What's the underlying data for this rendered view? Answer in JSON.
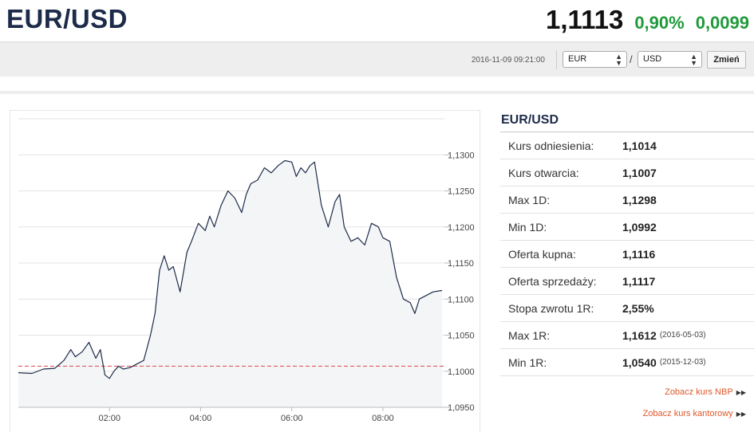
{
  "header": {
    "pair": "EUR/USD",
    "price": "1,1113",
    "change_pct": "0,90%",
    "change_abs": "0,0099"
  },
  "toolbar": {
    "timestamp": "2016-11-09 09:21:00",
    "from_currency": "EUR",
    "separator": "/",
    "to_currency": "USD",
    "change_button": "Zmień"
  },
  "panel": {
    "title": "EUR/USD",
    "rows": [
      {
        "label": "Kurs odniesienia:",
        "value": "1,1014",
        "date": ""
      },
      {
        "label": "Kurs otwarcia:",
        "value": "1,1007",
        "date": ""
      },
      {
        "label": "Max 1D:",
        "value": "1,1298",
        "date": ""
      },
      {
        "label": "Min 1D:",
        "value": "1,0992",
        "date": ""
      },
      {
        "label": "Oferta kupna:",
        "value": "1,1116",
        "date": ""
      },
      {
        "label": "Oferta sprzedaży:",
        "value": "1,1117",
        "date": ""
      },
      {
        "label": "Stopa zwrotu 1R:",
        "value": "2,55%",
        "date": ""
      },
      {
        "label": "Max 1R:",
        "value": "1,1612",
        "date": "(2016-05-03)"
      },
      {
        "label": "Min 1R:",
        "value": "1,0540",
        "date": "(2015-12-03)"
      }
    ],
    "link_nbp": "Zobacz kurs NBP",
    "link_kantor": "Zobacz kurs kantorowy",
    "chevron_icon": "double-chevron-right-icon"
  },
  "colors": {
    "title_navy": "#1d2b4a",
    "gain_green": "#1f9a3a",
    "link_orange": "#e0572a",
    "line": "#1d2b4a",
    "area": "#f4f5f7",
    "reference_line": "#e05a5a"
  },
  "chart_data": {
    "type": "area",
    "y_ticks": [
      "1,0950",
      "1,1000",
      "1,1050",
      "1,1100",
      "1,1150",
      "1,1200",
      "1,1250",
      "1,1300"
    ],
    "x_ticks": [
      "02:00",
      "04:00",
      "06:00",
      "08:00"
    ],
    "ylim": [
      1.095,
      1.135
    ],
    "xlim": [
      0.0,
      9.35
    ],
    "reference_line": 1.1007,
    "x_tick_values": [
      2,
      4,
      6,
      8
    ],
    "y_tick_values": [
      1.095,
      1.1,
      1.105,
      1.11,
      1.115,
      1.12,
      1.125,
      1.13
    ],
    "series": [
      {
        "x": [
          0.0,
          0.3,
          0.55,
          0.8,
          1.0,
          1.15,
          1.25,
          1.4,
          1.55,
          1.7,
          1.8,
          1.9,
          2.0,
          2.1,
          2.2,
          2.3,
          2.45,
          2.6,
          2.75,
          2.9,
          3.0,
          3.1,
          3.2,
          3.3,
          3.4,
          3.55,
          3.7,
          3.8,
          3.95,
          4.1,
          4.2,
          4.3,
          4.45,
          4.6,
          4.75,
          4.9,
          5.0,
          5.1,
          5.25,
          5.4,
          5.55,
          5.7,
          5.85,
          6.0,
          6.1,
          6.2,
          6.3,
          6.4,
          6.5,
          6.65,
          6.8,
          6.95,
          7.05,
          7.15,
          7.3,
          7.45,
          7.6,
          7.75,
          7.9,
          8.0,
          8.15,
          8.3,
          8.45,
          8.6,
          8.7,
          8.8,
          8.95,
          9.1,
          9.3
        ],
        "y": [
          1.0998,
          1.0997,
          1.1003,
          1.1004,
          1.1015,
          1.103,
          1.102,
          1.1027,
          1.104,
          1.1018,
          1.103,
          1.0995,
          1.099,
          1.1,
          1.1007,
          1.1003,
          1.1005,
          1.101,
          1.1015,
          1.105,
          1.108,
          1.114,
          1.116,
          1.114,
          1.1145,
          1.111,
          1.1165,
          1.118,
          1.1205,
          1.1195,
          1.1215,
          1.12,
          1.123,
          1.125,
          1.124,
          1.122,
          1.1245,
          1.126,
          1.1265,
          1.1282,
          1.1275,
          1.1285,
          1.1292,
          1.129,
          1.127,
          1.1282,
          1.1275,
          1.1285,
          1.129,
          1.123,
          1.12,
          1.1235,
          1.1245,
          1.12,
          1.118,
          1.1185,
          1.1175,
          1.1205,
          1.12,
          1.1185,
          1.118,
          1.113,
          1.11,
          1.1095,
          1.108,
          1.11,
          1.1105,
          1.111,
          1.1112
        ]
      }
    ]
  }
}
